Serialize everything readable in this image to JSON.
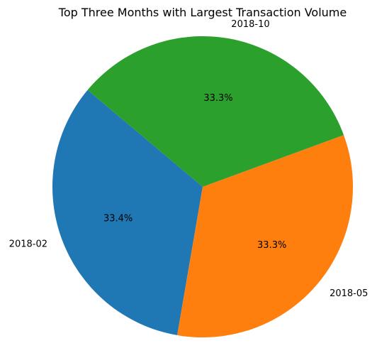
{
  "chart_data": {
    "type": "pie",
    "title": "Top Three Months with Largest Transaction Volume",
    "slices": [
      {
        "label": "2018-02",
        "percent": 33.4,
        "percent_label": "33.4%",
        "color": "#1f77b4"
      },
      {
        "label": "2018-05",
        "percent": 33.3,
        "percent_label": "33.3%",
        "color": "#ff7f0e"
      },
      {
        "label": "2018-10",
        "percent": 33.3,
        "percent_label": "33.3%",
        "color": "#2ca02c"
      }
    ],
    "start_angle_deg": 140,
    "direction": "counterclockwise",
    "legend": "none"
  }
}
